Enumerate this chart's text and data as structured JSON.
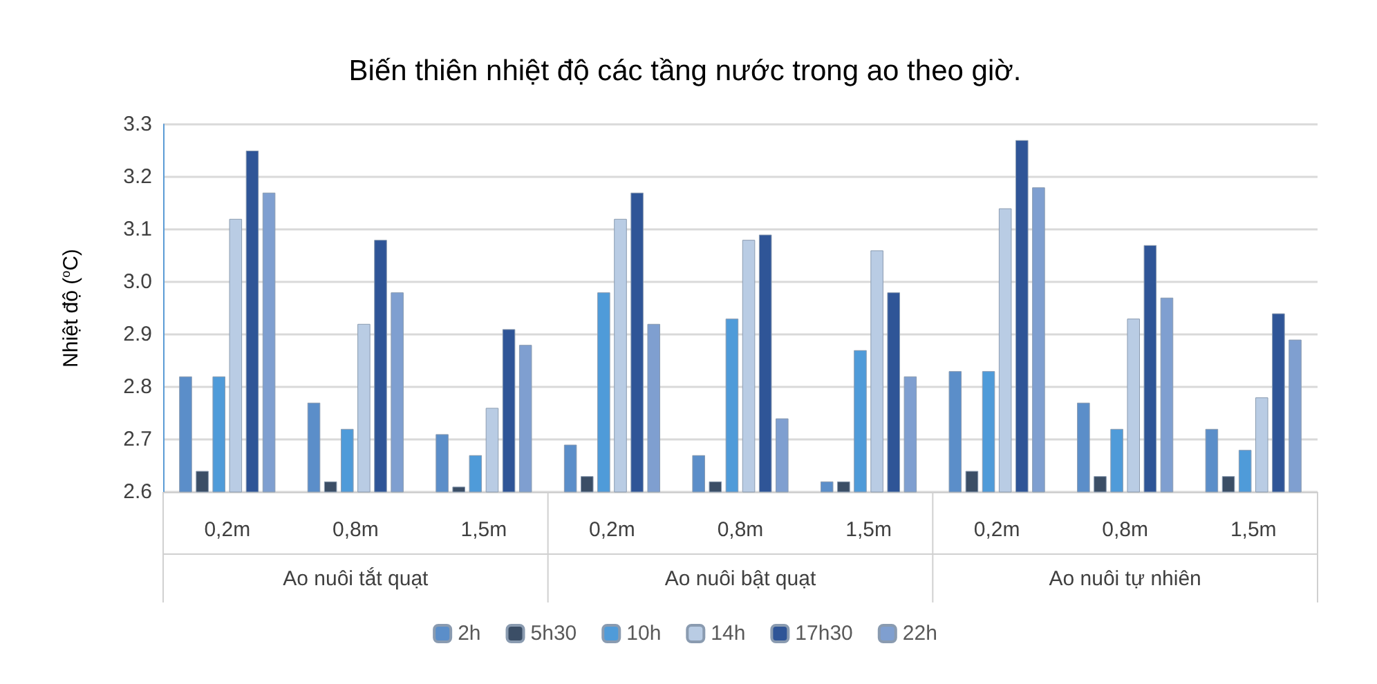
{
  "chart_data": {
    "type": "bar",
    "title": "Biến thiên nhiệt độ các tầng nước trong ao theo giờ.",
    "ylabel": "Nhiệt độ ($^{o}$C)",
    "categories": [
      "0,2m",
      "0,8m",
      "1,5m",
      "0,2m",
      "0,8m",
      "1,5m",
      "0,2m",
      "0,8m",
      "1,5m"
    ],
    "annotations": [
      "Ao nuôi tắt quạt",
      "Ao nuôi bật quạt",
      "Ao nuôi tự nhiên"
    ],
    "series": [
      {
        "name": "2h",
        "color": "#5b8ec9",
        "values": [
          2.82,
          2.77,
          2.71,
          2.69,
          2.67,
          2.62,
          2.83,
          2.77,
          2.72
        ]
      },
      {
        "name": "5h30",
        "color": "#3b4e66",
        "values": [
          2.64,
          2.62,
          2.61,
          2.63,
          2.62,
          2.62,
          2.64,
          2.63,
          2.63
        ]
      },
      {
        "name": "10h",
        "color": "#4f9bd9",
        "values": [
          2.82,
          2.72,
          2.67,
          2.98,
          2.93,
          2.87,
          2.83,
          2.72,
          2.68
        ]
      },
      {
        "name": "14h",
        "color": "#b9cce4",
        "values": [
          3.12,
          2.92,
          2.76,
          3.12,
          3.08,
          3.06,
          3.14,
          2.93,
          2.78
        ]
      },
      {
        "name": "17h30",
        "color": "#2f5597",
        "values": [
          3.25,
          3.08,
          2.91,
          3.17,
          3.09,
          2.98,
          3.27,
          3.07,
          2.94
        ]
      },
      {
        "name": "22h",
        "color": "#7f9fd0",
        "values": [
          3.17,
          2.98,
          2.88,
          2.92,
          2.74,
          2.82,
          3.18,
          2.97,
          2.89
        ]
      }
    ],
    "ylim": [
      2.6,
      3.3
    ],
    "yticks": [
      2.6,
      2.7,
      2.8,
      2.9,
      {
        "value": 3,
        "label": "3.0"
      },
      3.1,
      3.2,
      3.3
    ],
    "grid": "y",
    "legend": "bottom"
  }
}
